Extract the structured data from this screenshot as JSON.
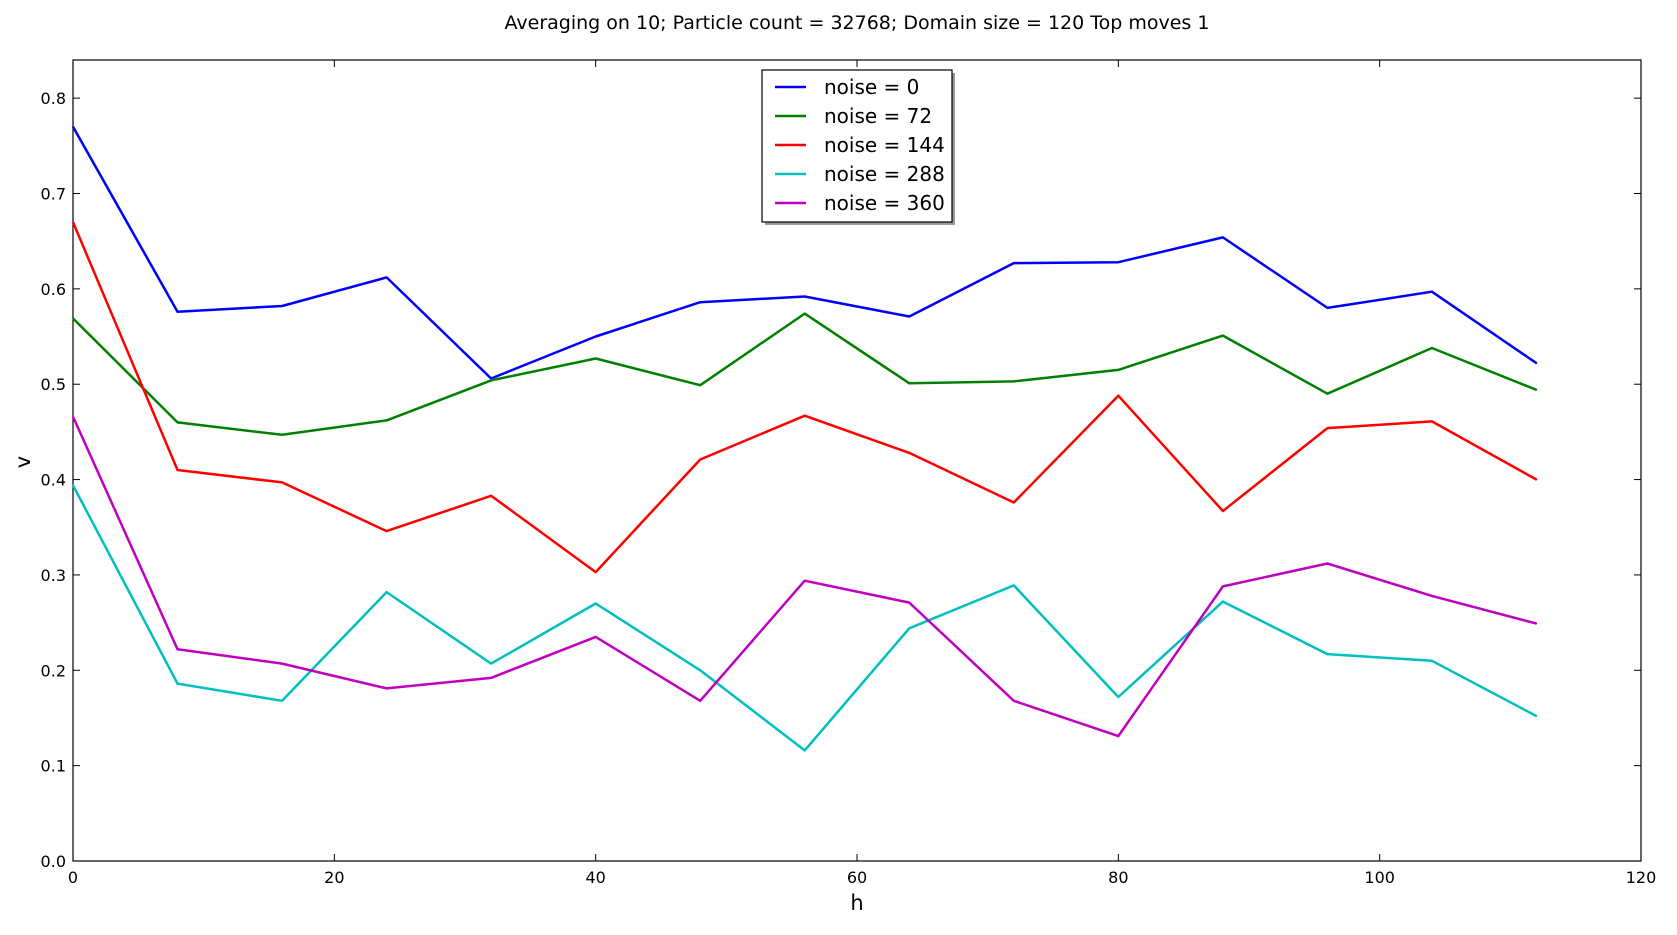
{
  "chart_data": {
    "type": "line",
    "title": "Averaging on 10; Particle count = 32768; Domain size = 120 Top moves 1",
    "xlabel": "h",
    "ylabel": "v",
    "xlim": [
      0,
      120
    ],
    "ylim": [
      0,
      0.84
    ],
    "xticks": [
      0,
      20,
      40,
      60,
      80,
      100,
      120
    ],
    "xtick_labels": [
      "0",
      "20",
      "40",
      "60",
      "80",
      "100",
      "120"
    ],
    "yticks": [
      0.0,
      0.1,
      0.2,
      0.3,
      0.4,
      0.5,
      0.6,
      0.7,
      0.8
    ],
    "ytick_labels": [
      "0.0",
      "0.1",
      "0.2",
      "0.3",
      "0.4",
      "0.5",
      "0.6",
      "0.7",
      "0.8"
    ],
    "grid": false,
    "legend_position": "top-center",
    "x": [
      0,
      8,
      16,
      24,
      32,
      40,
      48,
      56,
      64,
      72,
      80,
      88,
      96,
      104,
      112
    ],
    "series": [
      {
        "name": "noise = 0",
        "color": "#0000ff",
        "values": [
          0.77,
          0.576,
          0.582,
          0.612,
          0.506,
          0.55,
          0.586,
          0.592,
          0.571,
          0.627,
          0.628,
          0.654,
          0.58,
          0.597,
          0.522
        ]
      },
      {
        "name": "noise = 72",
        "color": "#008000",
        "values": [
          0.569,
          0.46,
          0.447,
          0.462,
          0.504,
          0.527,
          0.499,
          0.574,
          0.501,
          0.503,
          0.515,
          0.551,
          0.49,
          0.538,
          0.494
        ]
      },
      {
        "name": "noise = 144",
        "color": "#ff0000",
        "values": [
          0.67,
          0.41,
          0.397,
          0.346,
          0.383,
          0.303,
          0.421,
          0.467,
          0.428,
          0.376,
          0.488,
          0.367,
          0.454,
          0.461,
          0.4
        ]
      },
      {
        "name": "noise = 288",
        "color": "#00bfbf",
        "values": [
          0.394,
          0.186,
          0.168,
          0.282,
          0.207,
          0.27,
          0.2,
          0.116,
          0.244,
          0.289,
          0.172,
          0.272,
          0.217,
          0.21,
          0.152
        ]
      },
      {
        "name": "noise = 360",
        "color": "#bf00bf",
        "values": [
          0.466,
          0.222,
          0.207,
          0.181,
          0.192,
          0.235,
          0.168,
          0.294,
          0.271,
          0.168,
          0.131,
          0.288,
          0.312,
          0.278,
          0.249
        ]
      }
    ]
  }
}
